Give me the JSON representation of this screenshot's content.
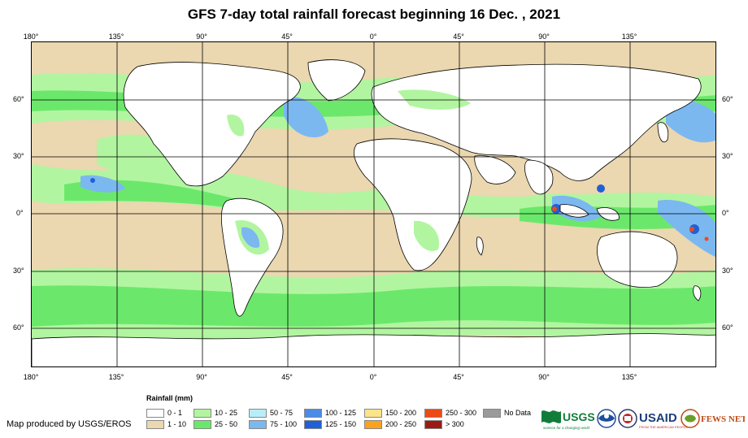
{
  "title": "GFS 7-day total rainfall forecast beginning 16 Dec. , 2021",
  "longitude_labels": [
    "180°",
    "135°",
    "90°",
    "45°",
    "0°",
    "45°",
    "90°",
    "135°"
  ],
  "latitude_labels": [
    "60°",
    "30°",
    "0°",
    "30°",
    "60°"
  ],
  "legend": {
    "title": "Rainfall (mm)",
    "items": [
      {
        "label": "0 - 1",
        "color": "#ffffff"
      },
      {
        "label": "1 - 10",
        "color": "#ebd7b0"
      },
      {
        "label": "10 - 25",
        "color": "#b2f5a0"
      },
      {
        "label": "25 - 50",
        "color": "#6be86b"
      },
      {
        "label": "50 - 75",
        "color": "#b7eef9"
      },
      {
        "label": "75 - 100",
        "color": "#7bb8f0"
      },
      {
        "label": "100 - 125",
        "color": "#4a8ce6"
      },
      {
        "label": "125 - 150",
        "color": "#2060d6"
      },
      {
        "label": "150 - 200",
        "color": "#fde38a"
      },
      {
        "label": "200 - 250",
        "color": "#f8a21e"
      },
      {
        "label": "250 - 300",
        "color": "#ee4a16"
      },
      {
        "label": "> 300",
        "color": "#9c1a16"
      },
      {
        "label": "No Data",
        "color": "#9a9a9a"
      }
    ]
  },
  "credit": "Map produced by USGS/EROS",
  "logos": {
    "usgs": "USGS",
    "usgs_tagline": "science for a changing world",
    "usaid": "USAID",
    "usaid_tagline": "FROM THE AMERICAN PEOPLE",
    "fews": "FEWS NET"
  },
  "colors": {
    "land": "#ffffff",
    "light_rain": "#ebd7b0",
    "moderate_rain": "#b2f5a0",
    "heavy_rain": "#6be86b",
    "grid": "#000000"
  }
}
